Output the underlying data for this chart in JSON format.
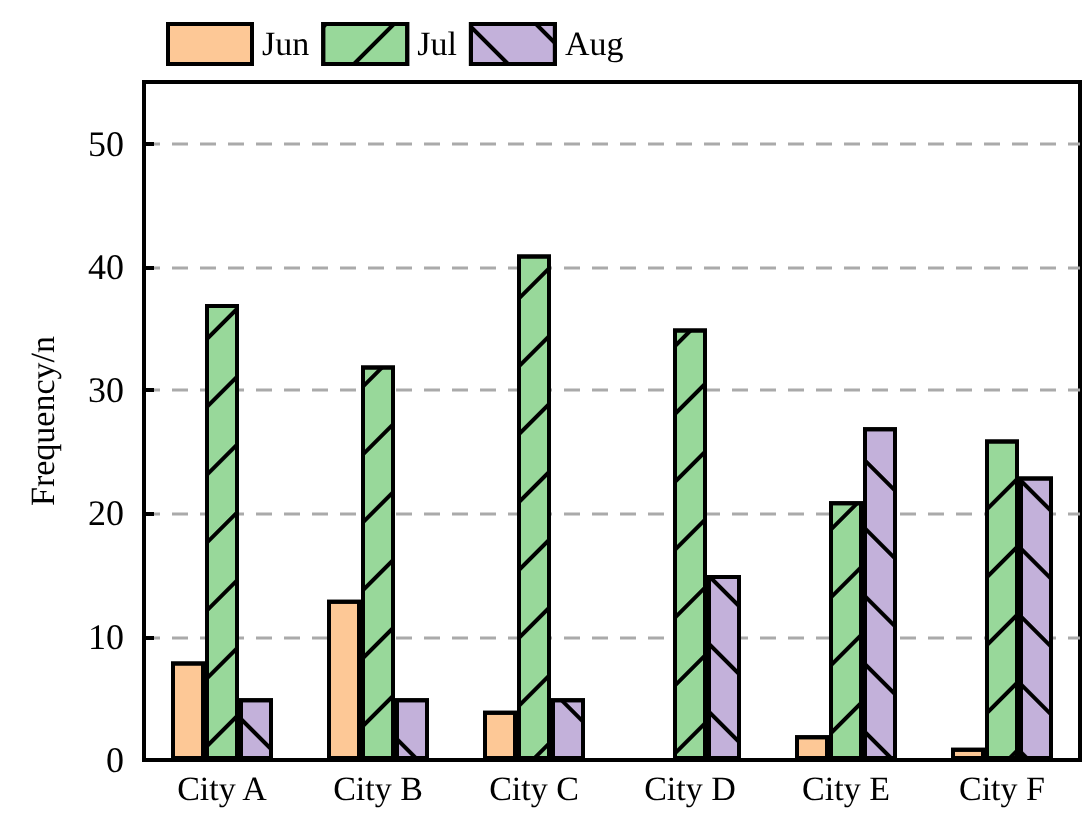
{
  "chart_data": {
    "type": "bar",
    "ylabel": "Frequency/n",
    "categories": [
      "City A",
      "City B",
      "City C",
      "City D",
      "City E",
      "City F"
    ],
    "series": [
      {
        "name": "Jun",
        "color": "#fdc896",
        "values": [
          8,
          13,
          4,
          0,
          2,
          1
        ]
      },
      {
        "name": "Jul",
        "color": "#98d89a",
        "values": [
          37,
          32,
          41,
          35,
          21,
          26
        ]
      },
      {
        "name": "Aug",
        "color": "#c3b1da",
        "values": [
          5,
          5,
          5,
          15,
          27,
          23
        ]
      }
    ],
    "ylim": [
      0,
      55
    ],
    "yticks": [
      0,
      10,
      20,
      30,
      40,
      50
    ],
    "grid": "y",
    "legend": "top left"
  }
}
